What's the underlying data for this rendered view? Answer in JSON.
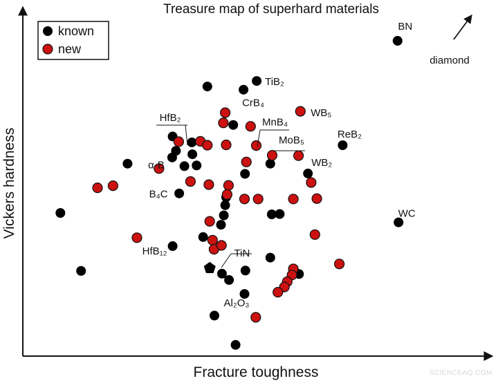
{
  "chart_data": {
    "type": "scatter",
    "title": "Treasure map of superhard materials",
    "xlabel": "Fracture toughness",
    "ylabel": "Vickers hardness",
    "xlim": [
      0,
      100
    ],
    "ylim": [
      0,
      100
    ],
    "grid": false,
    "legend": {
      "placement": "top-left",
      "entries": [
        "known",
        "new"
      ]
    },
    "colors": {
      "known": "#000000",
      "new": "#cc1111",
      "axis": "#111111"
    },
    "series": [
      {
        "name": "known",
        "marker": "circle",
        "points": [
          {
            "x": 79.8,
            "y": 90.3,
            "label": "BN"
          },
          {
            "x": 49.8,
            "y": 78.8,
            "label": "TiB₂"
          },
          {
            "x": 39.3,
            "y": 77.2
          },
          {
            "x": 47.0,
            "y": 76.3,
            "label": "CrB₄"
          },
          {
            "x": 44.8,
            "y": 66.2
          },
          {
            "x": 31.9,
            "y": 62.9
          },
          {
            "x": 36.0,
            "y": 61.2
          },
          {
            "x": 32.6,
            "y": 58.8
          },
          {
            "x": 31.8,
            "y": 56.9,
            "label": "α-B"
          },
          {
            "x": 36.1,
            "y": 57.8
          },
          {
            "x": 68.1,
            "y": 60.4,
            "label": "ReB₂"
          },
          {
            "x": 22.3,
            "y": 55.1
          },
          {
            "x": 34.4,
            "y": 54.4
          },
          {
            "x": 37.0,
            "y": 54.6
          },
          {
            "x": 52.7,
            "y": 55.1
          },
          {
            "x": 47.3,
            "y": 52.2
          },
          {
            "x": 60.7,
            "y": 52.3,
            "label": "WB₂"
          },
          {
            "x": 33.3,
            "y": 46.6,
            "label": "B₄C"
          },
          {
            "x": 43.3,
            "y": 45.5
          },
          {
            "x": 43.1,
            "y": 43.2
          },
          {
            "x": 42.8,
            "y": 40.3
          },
          {
            "x": 53.0,
            "y": 40.6
          },
          {
            "x": 54.7,
            "y": 40.7
          },
          {
            "x": 8.0,
            "y": 41.0
          },
          {
            "x": 80.0,
            "y": 38.3,
            "label": "WC"
          },
          {
            "x": 42.2,
            "y": 37.6
          },
          {
            "x": 38.4,
            "y": 34.1
          },
          {
            "x": 31.9,
            "y": 31.5,
            "label": "HfB₁₂"
          },
          {
            "x": 52.7,
            "y": 28.2
          },
          {
            "x": 12.4,
            "y": 24.4
          },
          {
            "x": 47.4,
            "y": 24.5
          },
          {
            "x": 42.4,
            "y": 23.6,
            "label": "TiN"
          },
          {
            "x": 43.9,
            "y": 21.8
          },
          {
            "x": 58.8,
            "y": 23.5
          },
          {
            "x": 47.2,
            "y": 17.8
          },
          {
            "x": 40.8,
            "y": 11.6
          },
          {
            "x": 45.3,
            "y": 3.2
          }
        ]
      },
      {
        "name": "new",
        "marker": "circle",
        "points": [
          {
            "x": 59.1,
            "y": 70.1,
            "label": "WB₅"
          },
          {
            "x": 43.1,
            "y": 69.7
          },
          {
            "x": 42.7,
            "y": 66.8
          },
          {
            "x": 48.5,
            "y": 65.8
          },
          {
            "x": 33.2,
            "y": 61.4
          },
          {
            "x": 37.8,
            "y": 61.5
          },
          {
            "x": 39.3,
            "y": 60.4
          },
          {
            "x": 43.3,
            "y": 60.5
          },
          {
            "x": 49.7,
            "y": 60.3,
            "label": "MnB₄"
          },
          {
            "x": 53.1,
            "y": 57.5,
            "label": "MoB₅"
          },
          {
            "x": 58.7,
            "y": 57.4
          },
          {
            "x": 47.6,
            "y": 55.6
          },
          {
            "x": 29.0,
            "y": 53.7
          },
          {
            "x": 35.7,
            "y": 50.0
          },
          {
            "x": 39.6,
            "y": 49.1
          },
          {
            "x": 43.8,
            "y": 48.9
          },
          {
            "x": 61.4,
            "y": 49.7
          },
          {
            "x": 15.9,
            "y": 48.2
          },
          {
            "x": 19.2,
            "y": 48.8
          },
          {
            "x": 43.5,
            "y": 46.3
          },
          {
            "x": 47.2,
            "y": 45.0
          },
          {
            "x": 50.1,
            "y": 45.0
          },
          {
            "x": 57.6,
            "y": 45.0
          },
          {
            "x": 62.6,
            "y": 45.1
          },
          {
            "x": 39.8,
            "y": 38.6
          },
          {
            "x": 62.2,
            "y": 34.8
          },
          {
            "x": 24.3,
            "y": 33.9
          },
          {
            "x": 40.4,
            "y": 33.2
          },
          {
            "x": 40.7,
            "y": 30.6
          },
          {
            "x": 42.3,
            "y": 31.7
          },
          {
            "x": 67.4,
            "y": 26.4
          },
          {
            "x": 57.6,
            "y": 25.0
          },
          {
            "x": 57.3,
            "y": 23.2
          },
          {
            "x": 56.3,
            "y": 21.3
          },
          {
            "x": 55.7,
            "y": 19.8
          },
          {
            "x": 54.3,
            "y": 18.3
          },
          {
            "x": 49.6,
            "y": 11.1
          }
        ]
      }
    ],
    "extra_markers": [
      {
        "shape": "pentagon",
        "x": 39.8,
        "y": 25.2,
        "series": "known"
      }
    ],
    "annotations": [
      {
        "text": "diamond",
        "arrow": true
      },
      {
        "text": "Al₂O₃"
      },
      {
        "text": "HfB₂"
      }
    ]
  },
  "watermark": "SCIENCEAQ.COM"
}
